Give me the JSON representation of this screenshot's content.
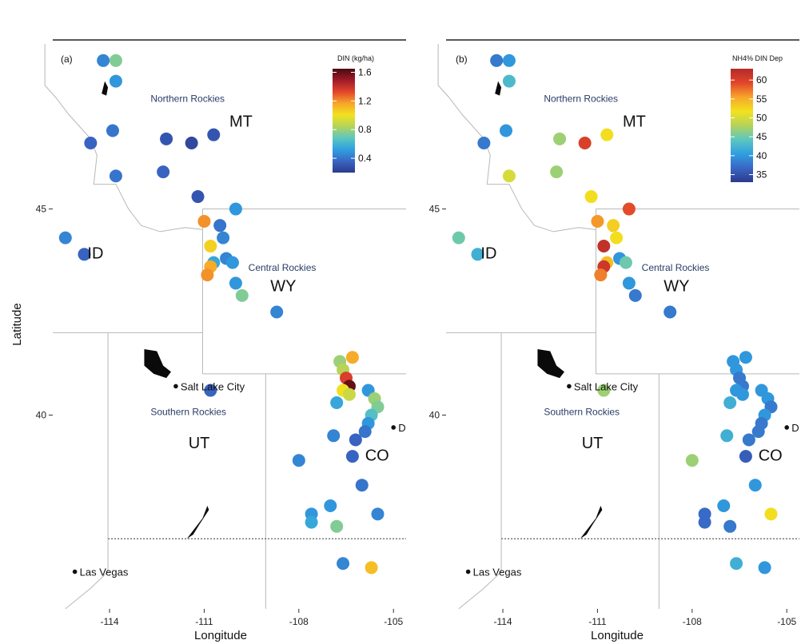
{
  "axes": {
    "xlabel": "Longitude",
    "ylabel": "Latitude",
    "x_ticks": [
      -114,
      -111,
      -108,
      -105
    ],
    "y_ticks": [
      45,
      40
    ],
    "xlim": [
      -115.8,
      -104.6
    ],
    "ylim": [
      35.3,
      49.1
    ]
  },
  "labels": {
    "states": [
      {
        "text": "MT",
        "lon": -110.2,
        "lat": 47.0
      },
      {
        "text": "ID",
        "lon": -114.7,
        "lat": 43.8
      },
      {
        "text": "WY",
        "lon": -108.9,
        "lat": 43.0
      },
      {
        "text": "UT",
        "lon": -111.5,
        "lat": 39.2
      },
      {
        "text": "CO",
        "lon": -105.9,
        "lat": 38.9
      }
    ],
    "regions": [
      {
        "text": "Northern Rockies",
        "lon": -112.7,
        "lat": 47.6
      },
      {
        "text": "Central Rockies",
        "lon": -109.6,
        "lat": 43.5
      },
      {
        "text": "Southern Rockies",
        "lon": -112.7,
        "lat": 40.0
      }
    ],
    "cities": [
      {
        "text": "Salt Lake City",
        "lon": -111.9,
        "lat": 40.7
      },
      {
        "text": "Las Vegas",
        "lon": -115.1,
        "lat": 36.2
      },
      {
        "text": "D",
        "lon": -105.0,
        "lat": 39.7
      }
    ]
  },
  "panels": [
    {
      "tag": "(a)",
      "legend_title": "DIN (kg/ha)",
      "legend_ticks": [
        1.6,
        1.2,
        0.8,
        0.4
      ],
      "vmin": 0.2,
      "vmax": 1.65,
      "colors": [
        "#2b3a8c",
        "#3a66c4",
        "#2f9fe0",
        "#5cc7c0",
        "#b5d35a",
        "#f2e21e",
        "#f7a52a",
        "#e2452a",
        "#a11a2a",
        "#4a0a10"
      ]
    },
    {
      "tag": "(b)",
      "legend_title": "NH4% DIN Dep",
      "legend_ticks": [
        60,
        55,
        50,
        45,
        40,
        35
      ],
      "vmin": 33,
      "vmax": 63,
      "colors": [
        "#2b3a8c",
        "#3a66c4",
        "#2f9fe0",
        "#5cc7c0",
        "#b5d35a",
        "#f2e21e",
        "#f7a52a",
        "#e2452a",
        "#b42a2a"
      ]
    }
  ],
  "chart_data": {
    "type": "scatter",
    "x_label": "Longitude",
    "y_label": "Latitude",
    "sites": [
      {
        "lon": -114.2,
        "lat": 48.6,
        "din": 0.45,
        "nh4": 38
      },
      {
        "lon": -113.8,
        "lat": 48.6,
        "din": 0.75,
        "nh4": 40
      },
      {
        "lon": -113.8,
        "lat": 48.1,
        "din": 0.5,
        "nh4": 43
      },
      {
        "lon": -113.9,
        "lat": 46.9,
        "din": 0.4,
        "nh4": 40
      },
      {
        "lon": -114.6,
        "lat": 46.6,
        "din": 0.35,
        "nh4": 38
      },
      {
        "lon": -112.2,
        "lat": 46.7,
        "din": 0.3,
        "nh4": 47
      },
      {
        "lon": -111.4,
        "lat": 46.6,
        "din": 0.25,
        "nh4": 60
      },
      {
        "lon": -110.7,
        "lat": 46.8,
        "din": 0.3,
        "nh4": 52
      },
      {
        "lon": -113.8,
        "lat": 45.8,
        "din": 0.4,
        "nh4": 50
      },
      {
        "lon": -112.3,
        "lat": 45.9,
        "din": 0.35,
        "nh4": 47
      },
      {
        "lon": -111.2,
        "lat": 45.3,
        "din": 0.3,
        "nh4": 52
      },
      {
        "lon": -110.0,
        "lat": 45.0,
        "din": 0.5,
        "nh4": 59
      },
      {
        "lon": -111.0,
        "lat": 44.7,
        "din": 1.2,
        "nh4": 56
      },
      {
        "lon": -110.5,
        "lat": 44.6,
        "din": 0.4,
        "nh4": 53
      },
      {
        "lon": -110.4,
        "lat": 44.3,
        "din": 0.45,
        "nh4": 52
      },
      {
        "lon": -110.8,
        "lat": 44.1,
        "din": 1.05,
        "nh4": 62
      },
      {
        "lon": -110.3,
        "lat": 43.8,
        "din": 0.45,
        "nh4": 40
      },
      {
        "lon": -110.1,
        "lat": 43.7,
        "din": 0.5,
        "nh4": 45
      },
      {
        "lon": -110.7,
        "lat": 43.7,
        "din": 0.55,
        "nh4": 54
      },
      {
        "lon": -110.8,
        "lat": 43.6,
        "din": 1.15,
        "nh4": 61
      },
      {
        "lon": -110.9,
        "lat": 43.4,
        "din": 1.2,
        "nh4": 57
      },
      {
        "lon": -110.0,
        "lat": 43.2,
        "din": 0.5,
        "nh4": 40
      },
      {
        "lon": -109.8,
        "lat": 42.9,
        "din": 0.75,
        "nh4": 38
      },
      {
        "lon": -108.7,
        "lat": 42.5,
        "din": 0.45,
        "nh4": 38
      },
      {
        "lon": -115.4,
        "lat": 44.3,
        "din": 0.45,
        "nh4": 45
      },
      {
        "lon": -114.8,
        "lat": 43.9,
        "din": 0.35,
        "nh4": 42
      },
      {
        "lon": -110.8,
        "lat": 40.6,
        "din": 0.35,
        "nh4": 47
      },
      {
        "lon": -106.7,
        "lat": 41.3,
        "din": 0.8,
        "nh4": 40
      },
      {
        "lon": -106.3,
        "lat": 41.4,
        "din": 1.15,
        "nh4": 40
      },
      {
        "lon": -106.6,
        "lat": 41.1,
        "din": 0.85,
        "nh4": 40
      },
      {
        "lon": -106.5,
        "lat": 40.9,
        "din": 1.35,
        "nh4": 38
      },
      {
        "lon": -106.4,
        "lat": 40.7,
        "din": 1.6,
        "nh4": 38
      },
      {
        "lon": -106.6,
        "lat": 40.6,
        "din": 1.0,
        "nh4": 40
      },
      {
        "lon": -106.4,
        "lat": 40.5,
        "din": 0.9,
        "nh4": 40
      },
      {
        "lon": -106.8,
        "lat": 40.3,
        "din": 0.55,
        "nh4": 42
      },
      {
        "lon": -105.8,
        "lat": 40.6,
        "din": 0.5,
        "nh4": 40
      },
      {
        "lon": -105.6,
        "lat": 40.4,
        "din": 0.8,
        "nh4": 40
      },
      {
        "lon": -105.5,
        "lat": 40.2,
        "din": 0.75,
        "nh4": 38
      },
      {
        "lon": -105.7,
        "lat": 40.0,
        "din": 0.65,
        "nh4": 40
      },
      {
        "lon": -105.8,
        "lat": 39.8,
        "din": 0.5,
        "nh4": 38
      },
      {
        "lon": -105.9,
        "lat": 39.6,
        "din": 0.4,
        "nh4": 38
      },
      {
        "lon": -106.2,
        "lat": 39.4,
        "din": 0.35,
        "nh4": 38
      },
      {
        "lon": -106.9,
        "lat": 39.5,
        "din": 0.45,
        "nh4": 42
      },
      {
        "lon": -108.0,
        "lat": 38.9,
        "din": 0.45,
        "nh4": 47
      },
      {
        "lon": -106.3,
        "lat": 39.0,
        "din": 0.35,
        "nh4": 36
      },
      {
        "lon": -106.0,
        "lat": 38.3,
        "din": 0.4,
        "nh4": 40
      },
      {
        "lon": -107.0,
        "lat": 37.8,
        "din": 0.5,
        "nh4": 40
      },
      {
        "lon": -107.6,
        "lat": 37.6,
        "din": 0.5,
        "nh4": 37
      },
      {
        "lon": -107.6,
        "lat": 37.4,
        "din": 0.55,
        "nh4": 37
      },
      {
        "lon": -106.8,
        "lat": 37.3,
        "din": 0.75,
        "nh4": 38
      },
      {
        "lon": -105.5,
        "lat": 37.6,
        "din": 0.45,
        "nh4": 52
      },
      {
        "lon": -106.6,
        "lat": 36.4,
        "din": 0.45,
        "nh4": 42
      },
      {
        "lon": -105.7,
        "lat": 36.3,
        "din": 1.1,
        "nh4": 40
      }
    ]
  }
}
